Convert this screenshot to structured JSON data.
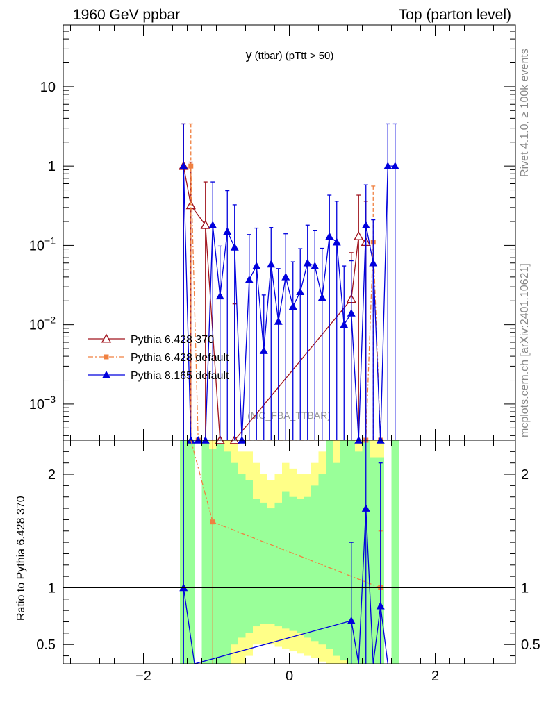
{
  "header": {
    "left": "1960 GeV ppbar",
    "right": "Top (parton level)"
  },
  "side_labels": {
    "rivet": "Rivet 4.1.0, ≥ 100k events",
    "mcplots": "mcplots.cern.ch [arXiv:2401.10621]"
  },
  "watermark": "(MC_FBA_TTBAR)",
  "colors": {
    "p6_370": "#a0141e",
    "p6_default": "#f08040",
    "p8_default": "#0000dd",
    "band_inner": "#99ff99",
    "band_outer": "#ffff88"
  },
  "chart_data": {
    "type": "line",
    "title_main": "y",
    "title_sub": "(ttbar)  (pTtt > 50)",
    "xlabel": "",
    "ylabel_main": "",
    "ylabel_ratio": "Ratio to Pythia 6.428 370",
    "xlim": [
      -3.1,
      3.1
    ],
    "ylim_main": [
      0.00035,
      60
    ],
    "ylim_ratio": [
      0.33,
      2.3
    ],
    "x_ticks": [
      -2,
      0,
      2
    ],
    "x_tick_labels": [
      "−2",
      "0",
      "2"
    ],
    "y_ticks_main": [
      {
        "v": 10,
        "base": "10",
        "exp": ""
      },
      {
        "v": 1,
        "base": "1",
        "exp": ""
      },
      {
        "v": 0.1,
        "base": "10",
        "exp": "−1"
      },
      {
        "v": 0.01,
        "base": "10",
        "exp": "−2"
      },
      {
        "v": 0.001,
        "base": "10",
        "exp": "−3"
      }
    ],
    "y_ticks_ratio": [
      {
        "v": 2,
        "label": "2"
      },
      {
        "v": 1,
        "label": "1"
      },
      {
        "v": 0.5,
        "label": "0.5"
      }
    ],
    "legend": [
      {
        "label": "Pythia 6.428 370",
        "key": "p6_370"
      },
      {
        "label": "Pythia 6.428 default",
        "key": "p6_default"
      },
      {
        "label": "Pythia 8.165 default",
        "key": "p8_default"
      }
    ],
    "series": [
      {
        "name": "Pythia 6.428 370",
        "key": "p6_370",
        "marker": "triangle-open",
        "x": [
          -1.45,
          -1.35,
          -1.15,
          -0.95,
          -0.75,
          0.85,
          0.95,
          1.05
        ],
        "y": [
          1.0,
          0.32,
          0.18,
          0.0003,
          0.0003,
          0.021,
          0.13,
          0.11
        ],
        "err_up": [
          2.4,
          0.8,
          0.45,
          0.0003,
          0.018,
          0.06,
          0.3,
          0.25
        ]
      },
      {
        "name": "Pythia 6.428 default",
        "key": "p6_default",
        "marker": "square",
        "x": [
          -1.35,
          -1.25,
          1.05,
          1.15,
          1.25
        ],
        "y": [
          1.0,
          0.0003,
          0.0003,
          0.11,
          0.0003
        ],
        "err_up": [
          2.4,
          0.0003,
          0.0003,
          0.45,
          0.0003
        ]
      },
      {
        "name": "Pythia 8.165 default",
        "key": "p8_default",
        "marker": "triangle",
        "x": [
          -1.45,
          -1.35,
          -1.25,
          -1.15,
          -1.05,
          -0.95,
          -0.85,
          -0.75,
          -0.65,
          -0.55,
          -0.45,
          -0.35,
          -0.25,
          -0.15,
          -0.05,
          0.05,
          0.15,
          0.25,
          0.35,
          0.45,
          0.55,
          0.65,
          0.75,
          0.85,
          0.95,
          1.05,
          1.15,
          1.25,
          1.35,
          1.45
        ],
        "y": [
          1.0,
          0.0003,
          0.0003,
          0.0003,
          0.18,
          0.023,
          0.15,
          0.095,
          0.0003,
          0.037,
          0.055,
          0.0047,
          0.058,
          0.011,
          0.04,
          0.017,
          0.026,
          0.06,
          0.055,
          0.022,
          0.13,
          0.11,
          0.01,
          0.014,
          0.0003,
          0.18,
          0.06,
          0.0003,
          1.0,
          1.0
        ],
        "err_up": [
          2.4,
          0.0003,
          0.0003,
          0.0003,
          0.45,
          0.075,
          0.34,
          0.23,
          0.0003,
          0.1,
          0.11,
          0.019,
          0.11,
          0.04,
          0.1,
          0.045,
          0.065,
          0.12,
          0.1,
          0.07,
          0.3,
          0.25,
          0.045,
          0.05,
          0.0003,
          0.4,
          0.15,
          0.0003,
          2.4,
          2.4
        ]
      }
    ],
    "ratio_series": [
      {
        "name": "Pythia 6.428 default / Pythia 6.428 370",
        "key": "p6_default",
        "x": [
          -1.35,
          -1.05,
          1.25
        ],
        "y": [
          2.6,
          1.58,
          1.0
        ],
        "err_up": [
          3.0,
          2.3,
          1.5
        ]
      },
      {
        "name": "Pythia 8.165 default / Pythia 6.428 370",
        "key": "p8_default",
        "x": [
          -1.45,
          -1.3,
          0.85,
          0.95,
          1.05,
          1.15,
          1.25,
          1.35
        ],
        "y": [
          1.0,
          0.2,
          0.71,
          0.2,
          1.7,
          0.2,
          0.84,
          0.2
        ],
        "err_up": [
          2.5,
          0.2,
          1.4,
          0.2,
          2.5,
          0.2,
          2.1,
          0.2
        ]
      }
    ],
    "ratio_bands": [
      {
        "x0": -1.5,
        "x1": -1.4,
        "inner": [
          0.33,
          2.3
        ],
        "outer": [
          0.33,
          2.3
        ]
      },
      {
        "x0": -1.4,
        "x1": -1.3,
        "inner": [
          0.33,
          2.3
        ],
        "outer": [
          0.33,
          2.3
        ]
      },
      {
        "x0": -1.2,
        "x1": -1.1,
        "inner": [
          0.33,
          2.3
        ],
        "outer": [
          0.33,
          2.3
        ]
      },
      {
        "x0": -1.1,
        "x1": -1.0,
        "inner": [
          0.33,
          2.22
        ],
        "outer": [
          0.33,
          2.3
        ]
      },
      {
        "x0": -1.0,
        "x1": -0.9,
        "inner": [
          0.33,
          2.3
        ],
        "outer": [
          0.33,
          2.3
        ]
      },
      {
        "x0": -0.9,
        "x1": -0.8,
        "inner": [
          0.33,
          2.2
        ],
        "outer": [
          0.33,
          2.3
        ]
      },
      {
        "x0": -0.8,
        "x1": -0.7,
        "inner": [
          0.5,
          2.1
        ],
        "outer": [
          0.33,
          2.3
        ]
      },
      {
        "x0": -0.7,
        "x1": -0.6,
        "inner": [
          0.56,
          2.0
        ],
        "outer": [
          0.33,
          2.2
        ]
      },
      {
        "x0": -0.6,
        "x1": -0.5,
        "inner": [
          0.6,
          1.95
        ],
        "outer": [
          0.4,
          2.2
        ]
      },
      {
        "x0": -0.5,
        "x1": -0.4,
        "inner": [
          0.66,
          1.78
        ],
        "outer": [
          0.5,
          2.1
        ]
      },
      {
        "x0": -0.4,
        "x1": -0.3,
        "inner": [
          0.68,
          1.75
        ],
        "outer": [
          0.5,
          2.0
        ]
      },
      {
        "x0": -0.3,
        "x1": -0.2,
        "inner": [
          0.68,
          1.7
        ],
        "outer": [
          0.5,
          1.95
        ]
      },
      {
        "x0": -0.2,
        "x1": -0.1,
        "inner": [
          0.66,
          1.75
        ],
        "outer": [
          0.48,
          2.0
        ]
      },
      {
        "x0": -0.1,
        "x1": 0.0,
        "inner": [
          0.64,
          1.85
        ],
        "outer": [
          0.46,
          2.1
        ]
      },
      {
        "x0": 0.0,
        "x1": 0.1,
        "inner": [
          0.62,
          1.8
        ],
        "outer": [
          0.44,
          2.05
        ]
      },
      {
        "x0": 0.1,
        "x1": 0.2,
        "inner": [
          0.6,
          1.78
        ],
        "outer": [
          0.42,
          2.0
        ]
      },
      {
        "x0": 0.2,
        "x1": 0.3,
        "inner": [
          0.56,
          1.8
        ],
        "outer": [
          0.4,
          2.0
        ]
      },
      {
        "x0": 0.3,
        "x1": 0.4,
        "inner": [
          0.53,
          1.9
        ],
        "outer": [
          0.38,
          2.1
        ]
      },
      {
        "x0": 0.4,
        "x1": 0.5,
        "inner": [
          0.5,
          2.0
        ],
        "outer": [
          0.35,
          2.2
        ]
      },
      {
        "x0": 0.5,
        "x1": 0.6,
        "inner": [
          0.46,
          2.3
        ],
        "outer": [
          0.33,
          2.3
        ]
      },
      {
        "x0": 0.6,
        "x1": 0.7,
        "inner": [
          0.4,
          2.1
        ],
        "outer": [
          0.33,
          2.3
        ]
      },
      {
        "x0": 0.7,
        "x1": 0.8,
        "inner": [
          0.36,
          2.3
        ],
        "outer": [
          0.33,
          2.3
        ]
      },
      {
        "x0": 0.8,
        "x1": 0.9,
        "inner": [
          0.33,
          2.3
        ],
        "outer": [
          0.33,
          2.3
        ]
      },
      {
        "x0": 0.9,
        "x1": 1.0,
        "inner": [
          0.33,
          2.2
        ],
        "outer": [
          0.33,
          2.3
        ]
      },
      {
        "x0": 1.0,
        "x1": 1.1,
        "inner": [
          0.33,
          2.3
        ],
        "outer": [
          0.33,
          2.3
        ]
      },
      {
        "x0": 1.1,
        "x1": 1.2,
        "inner": [
          0.33,
          2.15
        ],
        "outer": [
          0.33,
          2.3
        ]
      },
      {
        "x0": 1.2,
        "x1": 1.3,
        "inner": [
          0.33,
          2.15
        ],
        "outer": [
          0.33,
          2.3
        ]
      },
      {
        "x0": 1.4,
        "x1": 1.5,
        "inner": [
          0.33,
          2.3
        ],
        "outer": [
          0.33,
          2.3
        ]
      }
    ]
  }
}
